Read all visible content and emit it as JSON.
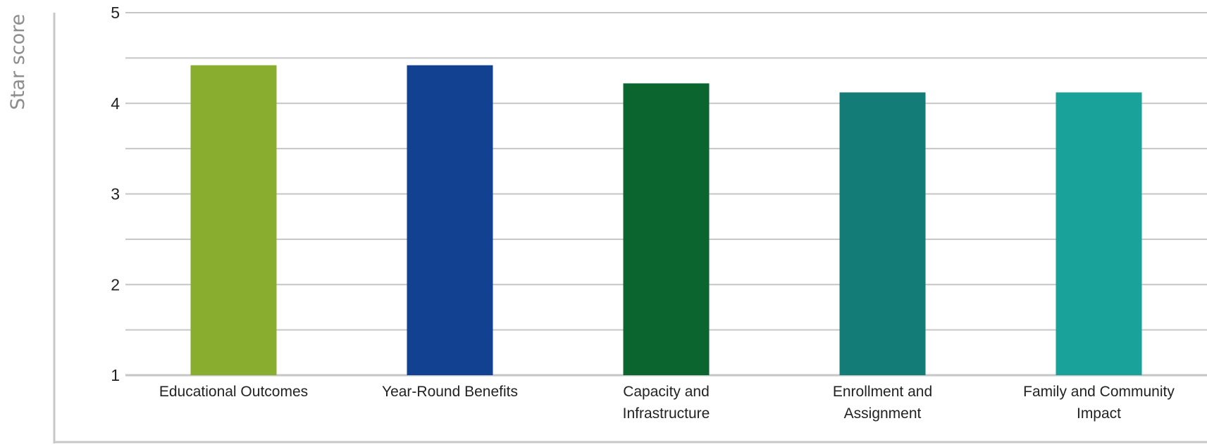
{
  "chart_data": {
    "type": "bar",
    "title": "",
    "xlabel": "",
    "ylabel": "Star score",
    "ylim": [
      1,
      5
    ],
    "yticks": [
      1,
      2,
      3,
      4,
      5
    ],
    "grid": true,
    "categories": [
      [
        "Educational Outcomes"
      ],
      [
        "Year-Round Benefits"
      ],
      [
        "Capacity and",
        "Infrastructure"
      ],
      [
        "Enrollment and",
        "Assignment"
      ],
      [
        "Family and Community",
        "Impact"
      ]
    ],
    "values": [
      4.42,
      4.42,
      4.22,
      4.12,
      4.12
    ],
    "colors": [
      "#88ad2f",
      "#134191",
      "#0b652f",
      "#137c76",
      "#18a299"
    ]
  }
}
